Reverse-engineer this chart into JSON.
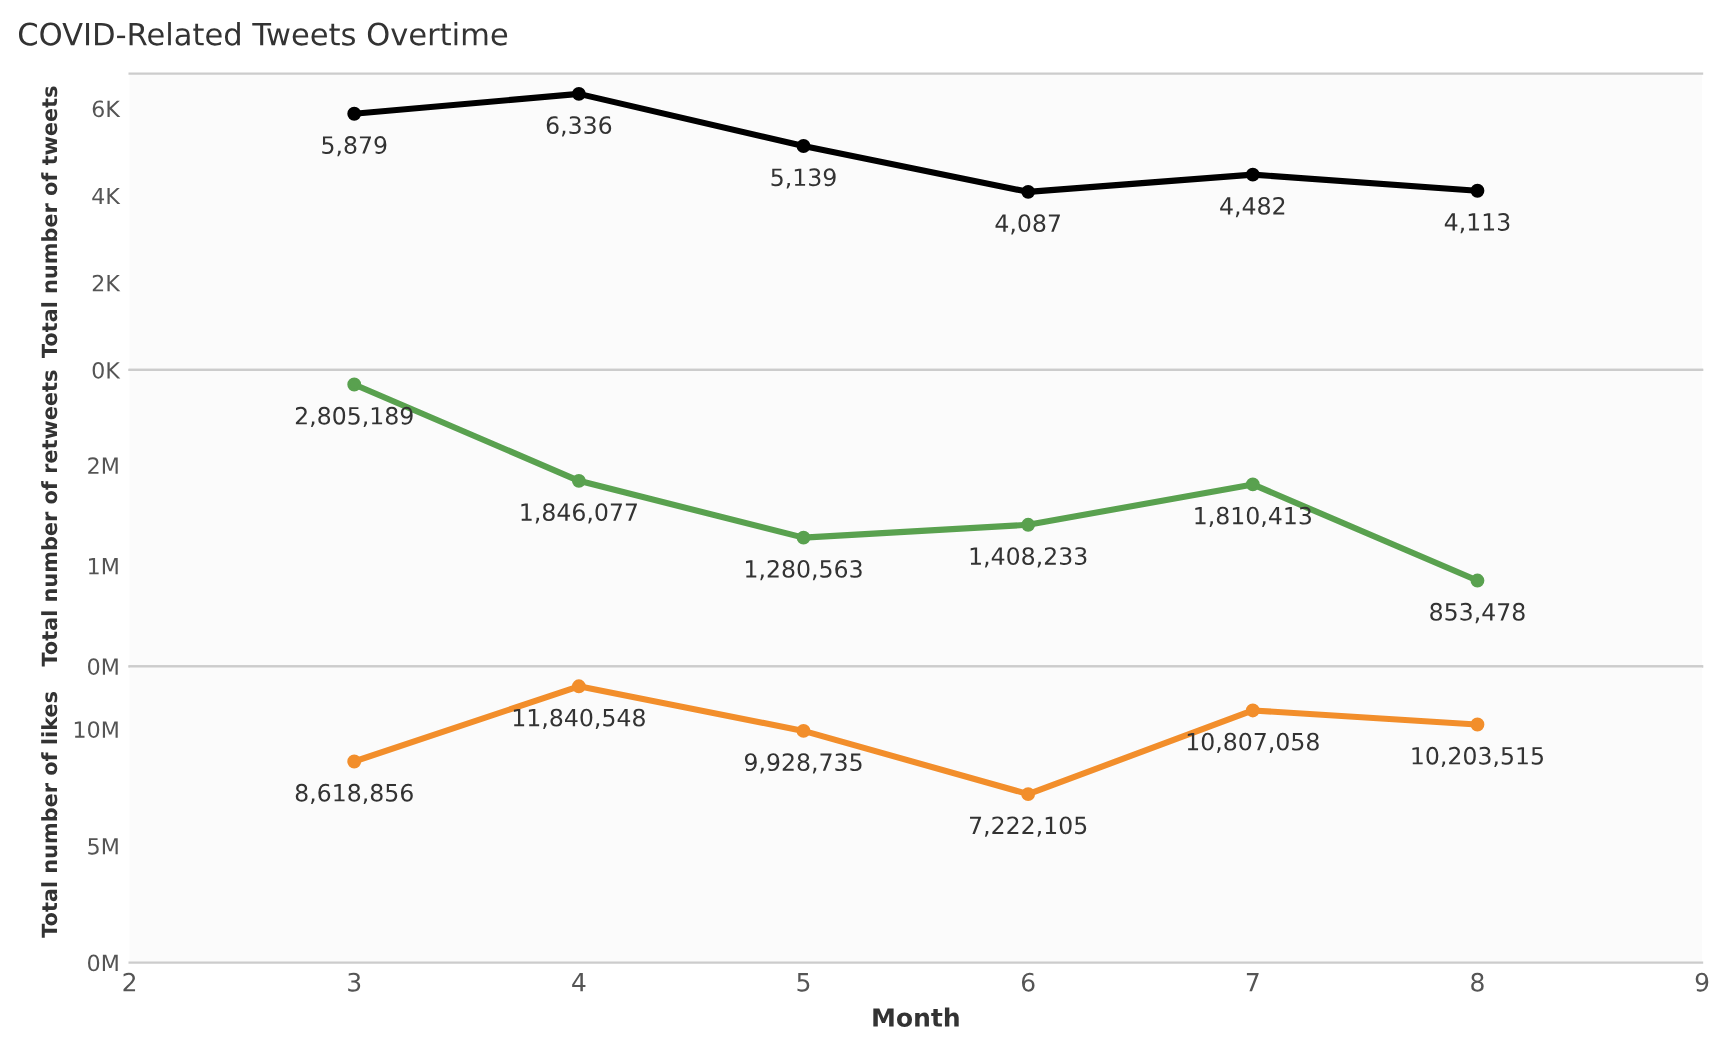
{
  "chart_data": [
    {
      "type": "line",
      "title": "COVID-Related Tweets Overtime",
      "ylabel": "Total number of tweets",
      "x": [
        3,
        4,
        5,
        6,
        7,
        8
      ],
      "xlim": [
        2,
        9
      ],
      "ylim": [
        0,
        6800
      ],
      "yticks": [
        {
          "value": 0,
          "label": "0K"
        },
        {
          "value": 2000,
          "label": "2K"
        },
        {
          "value": 4000,
          "label": "4K"
        },
        {
          "value": 6000,
          "label": "6K"
        }
      ],
      "tick_labels": "y",
      "marker": "circle",
      "grid": false,
      "series": [
        {
          "color": "#000000",
          "values": [
            5879,
            6336,
            5139,
            4087,
            4482,
            4113
          ],
          "value_labels": [
            "5,879",
            "6,336",
            "5,139",
            "4,087",
            "4,482",
            "4,113"
          ]
        }
      ]
    },
    {
      "type": "line",
      "ylabel": "Total number of retweets",
      "x": [
        3,
        4,
        5,
        6,
        7,
        8
      ],
      "xlim": [
        2,
        9
      ],
      "ylim": [
        0,
        2950000
      ],
      "yticks": [
        {
          "value": 0,
          "label": "0M"
        },
        {
          "value": 1000000,
          "label": "1M"
        },
        {
          "value": 2000000,
          "label": "2M"
        }
      ],
      "tick_labels": "y",
      "marker": "circle",
      "grid": false,
      "series": [
        {
          "color": "#59a14f",
          "values": [
            2805189,
            1846077,
            1280563,
            1408233,
            1810413,
            853478
          ],
          "value_labels": [
            "2,805,189",
            "1,846,077",
            "1,280,563",
            "1,408,233",
            "1,810,413",
            "853,478"
          ]
        }
      ]
    },
    {
      "type": "line",
      "ylabel": "Total number of likes",
      "xlabel": "Month",
      "x": [
        3,
        4,
        5,
        6,
        7,
        8
      ],
      "xlim": [
        2,
        9
      ],
      "xticks": [
        2,
        3,
        4,
        5,
        6,
        7,
        8,
        9
      ],
      "ylim": [
        0,
        12700000
      ],
      "yticks": [
        {
          "value": 0,
          "label": "0M"
        },
        {
          "value": 5000000,
          "label": "5M"
        },
        {
          "value": 10000000,
          "label": "10M"
        }
      ],
      "marker": "circle",
      "grid": false,
      "series": [
        {
          "color": "#f28e2b",
          "values": [
            8618856,
            11840548,
            9928735,
            7222105,
            10807058,
            10203515
          ],
          "value_labels": [
            "8,618,856",
            "11,840,548",
            "9,928,735",
            "7,222,105",
            "10,807,058",
            "10,203,515"
          ]
        }
      ]
    }
  ]
}
